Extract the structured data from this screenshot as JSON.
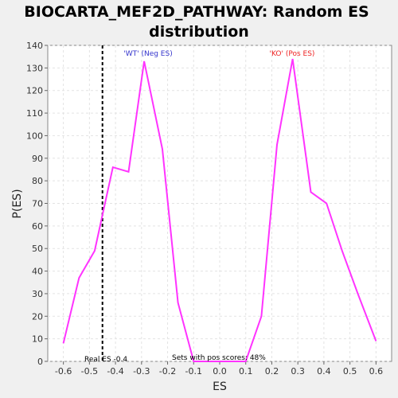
{
  "chart_data": {
    "type": "line",
    "title_line1": "BIOCARTA_MEF2D_PATHWAY: Random ES",
    "title_line2": "distribution",
    "xlabel": "ES",
    "ylabel": "P(ES)",
    "xlim": [
      -0.66,
      0.66
    ],
    "ylim": [
      0,
      140
    ],
    "xticks": [
      "-0.6",
      "-0.5",
      "-0.4",
      "-0.3",
      "-0.2",
      "-0.1",
      "0.0",
      "0.1",
      "0.2",
      "0.3",
      "0.4",
      "0.5",
      "0.6"
    ],
    "xtick_values": [
      -0.6,
      -0.5,
      -0.4,
      -0.3,
      -0.2,
      -0.1,
      0.0,
      0.1,
      0.2,
      0.3,
      0.4,
      0.5,
      0.6
    ],
    "yticks": [
      "0",
      "10",
      "20",
      "30",
      "40",
      "50",
      "60",
      "70",
      "80",
      "90",
      "100",
      "110",
      "120",
      "130",
      "140"
    ],
    "ytick_values": [
      0,
      10,
      20,
      30,
      40,
      50,
      60,
      70,
      80,
      90,
      100,
      110,
      120,
      130,
      140
    ],
    "grid": true,
    "series": [
      {
        "color": "#ff33ff",
        "x": [
          -0.6,
          -0.54,
          -0.48,
          -0.41,
          -0.35,
          -0.29,
          -0.22,
          -0.16,
          -0.1,
          -0.03,
          0.03,
          0.1,
          0.16,
          0.22,
          0.28,
          0.35,
          0.41,
          0.47,
          0.53,
          0.6
        ],
        "y": [
          8,
          37,
          49,
          86,
          84,
          133,
          94,
          26,
          0,
          0,
          0,
          0,
          20,
          96,
          134,
          75,
          70,
          49,
          30,
          9
        ]
      }
    ],
    "real_es_line": {
      "x": -0.45,
      "color": "#000000",
      "style": "dashed"
    },
    "annotations": {
      "wt_label": "'WT' (Neg ES)",
      "wt_color": "#3333cc",
      "ko_label": "'KO' (Pos ES)",
      "ko_color": "#ee2222",
      "real_es": "Real ES -0.4",
      "pos_scores": "Sets with pos scores: 48%"
    }
  }
}
